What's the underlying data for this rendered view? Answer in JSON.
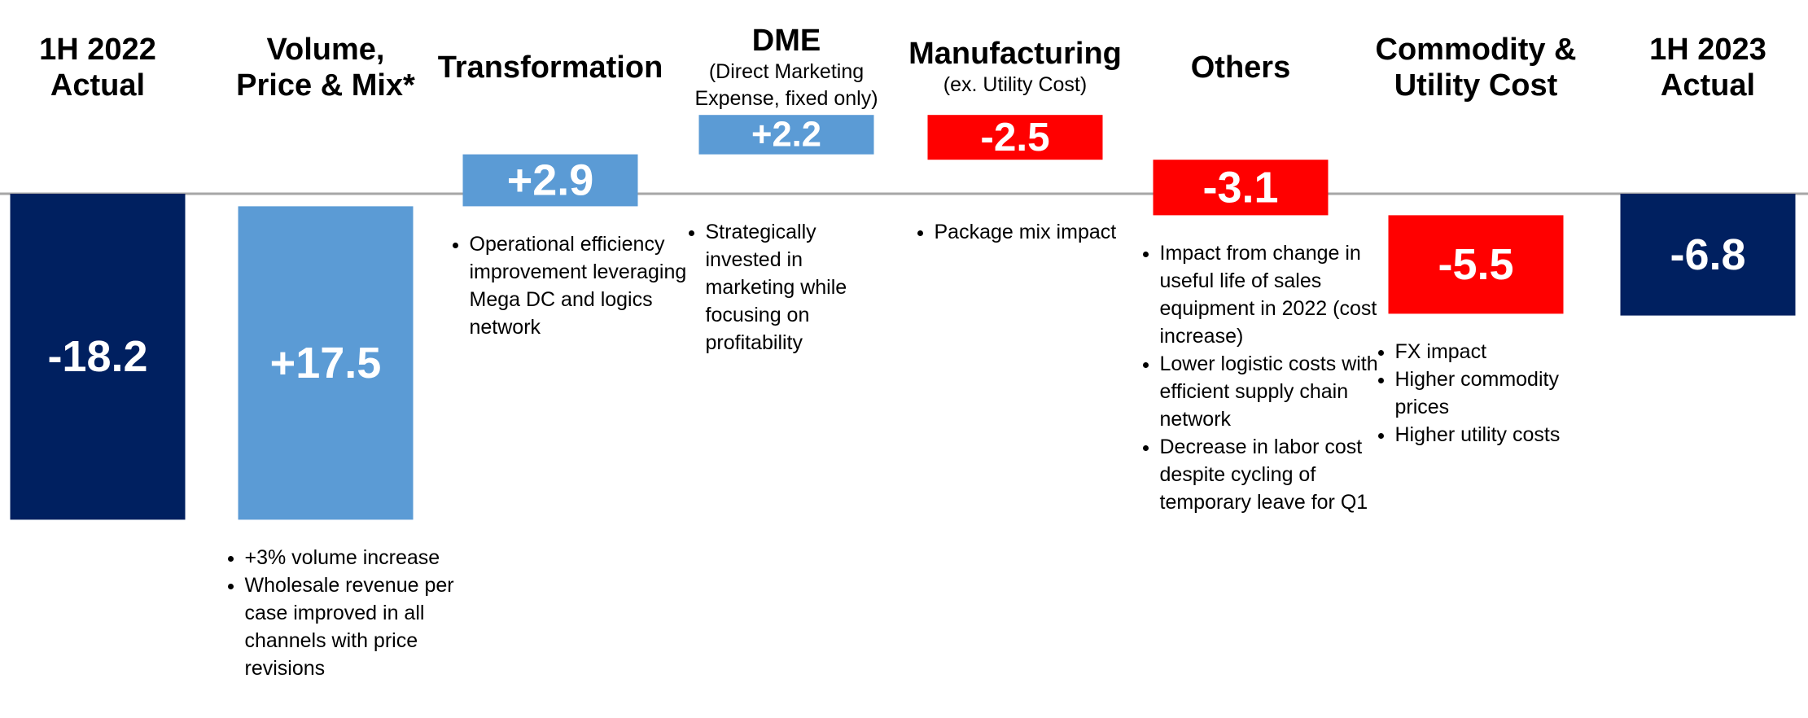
{
  "chart_data": {
    "type": "waterfall",
    "categories": [
      [
        "1H 2022",
        "Actual"
      ],
      [
        "Volume,",
        "Price & Mix*"
      ],
      [
        "Transformation"
      ],
      [
        "DME"
      ],
      [
        "Manufacturing"
      ],
      [
        "Others"
      ],
      [
        "Commodity &",
        "Utility Cost"
      ],
      [
        "1H 2023",
        "Actual"
      ]
    ],
    "subtitles": [
      null,
      null,
      null,
      [
        "(Direct Marketing",
        "Expense, fixed only)"
      ],
      [
        "(ex. Utility Cost)"
      ],
      null,
      null,
      null
    ],
    "values": [
      -18.2,
      17.5,
      2.9,
      2.2,
      -2.5,
      -3.1,
      -5.5,
      -6.8
    ],
    "value_labels": [
      "-18.2",
      "+17.5",
      "+2.9",
      "+2.2",
      "-2.5",
      "-3.1",
      "-5.5",
      "-6.8"
    ],
    "totals": [
      true,
      false,
      false,
      false,
      false,
      false,
      false,
      true
    ],
    "colors": [
      "#002060",
      "#5b9bd5",
      "#5b9bd5",
      "#5b9bd5",
      "#ff0000",
      "#ff0000",
      "#ff0000",
      "#002060"
    ],
    "notes": [
      [],
      [
        "+3% volume increase",
        "Wholesale revenue per case improved in all channels with price revisions"
      ],
      [
        "Operational efficiency improvement leveraging Mega DC and logics network"
      ],
      [
        "Strategically invested in marketing while focusing on profitability"
      ],
      [
        "Package mix impact"
      ],
      [
        "Impact from change in useful life of sales equipment in 2022 (cost increase)",
        "Lower logistic costs with efficient supply chain network",
        "Decrease in labor cost despite cycling of temporary leave for Q1"
      ],
      [
        "FX impact",
        "Higher commodity prices",
        "Higher utility costs"
      ],
      []
    ]
  }
}
